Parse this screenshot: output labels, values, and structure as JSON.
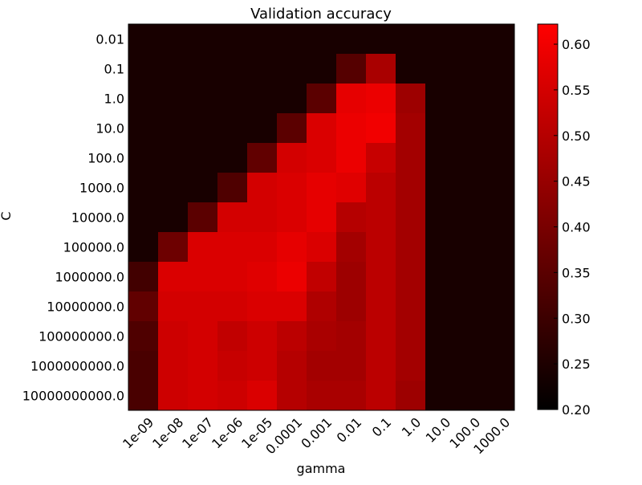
{
  "chart_data": {
    "type": "heatmap",
    "title": "Validation accuracy",
    "xlabel": "gamma",
    "ylabel": "C",
    "x_categories": [
      "1e-09",
      "1e-08",
      "1e-07",
      "1e-06",
      "1e-05",
      "0.0001",
      "0.001",
      "0.01",
      "0.1",
      "1.0",
      "10.0",
      "100.0",
      "1000.0"
    ],
    "y_categories": [
      "0.01",
      "0.1",
      "1.0",
      "10.0",
      "100.0",
      "1000.0",
      "10000.0",
      "100000.0",
      "1000000.0",
      "10000000.0",
      "100000000.0",
      "1000000000.0",
      "10000000000.0"
    ],
    "values": [
      [
        0.24,
        0.24,
        0.24,
        0.24,
        0.24,
        0.24,
        0.24,
        0.24,
        0.24,
        0.24,
        0.24,
        0.24,
        0.24
      ],
      [
        0.24,
        0.24,
        0.24,
        0.24,
        0.24,
        0.24,
        0.24,
        0.34,
        0.48,
        0.24,
        0.24,
        0.24,
        0.24
      ],
      [
        0.24,
        0.24,
        0.24,
        0.24,
        0.24,
        0.24,
        0.35,
        0.58,
        0.59,
        0.46,
        0.24,
        0.24,
        0.24
      ],
      [
        0.24,
        0.24,
        0.24,
        0.24,
        0.24,
        0.35,
        0.56,
        0.59,
        0.6,
        0.47,
        0.24,
        0.24,
        0.24
      ],
      [
        0.24,
        0.24,
        0.24,
        0.24,
        0.36,
        0.55,
        0.56,
        0.59,
        0.53,
        0.47,
        0.24,
        0.24,
        0.24
      ],
      [
        0.24,
        0.24,
        0.24,
        0.33,
        0.55,
        0.56,
        0.58,
        0.57,
        0.51,
        0.47,
        0.24,
        0.24,
        0.24
      ],
      [
        0.24,
        0.24,
        0.35,
        0.55,
        0.55,
        0.56,
        0.58,
        0.5,
        0.51,
        0.47,
        0.24,
        0.24,
        0.24
      ],
      [
        0.24,
        0.38,
        0.56,
        0.56,
        0.56,
        0.58,
        0.56,
        0.47,
        0.51,
        0.47,
        0.24,
        0.24,
        0.24
      ],
      [
        0.31,
        0.56,
        0.56,
        0.56,
        0.57,
        0.59,
        0.52,
        0.46,
        0.51,
        0.47,
        0.24,
        0.24,
        0.24
      ],
      [
        0.36,
        0.55,
        0.55,
        0.55,
        0.56,
        0.56,
        0.49,
        0.46,
        0.51,
        0.47,
        0.24,
        0.24,
        0.24
      ],
      [
        0.33,
        0.54,
        0.55,
        0.52,
        0.54,
        0.51,
        0.48,
        0.47,
        0.51,
        0.47,
        0.24,
        0.24,
        0.24
      ],
      [
        0.32,
        0.54,
        0.55,
        0.53,
        0.54,
        0.5,
        0.47,
        0.47,
        0.51,
        0.47,
        0.24,
        0.24,
        0.24
      ],
      [
        0.32,
        0.54,
        0.55,
        0.54,
        0.56,
        0.5,
        0.48,
        0.48,
        0.51,
        0.46,
        0.24,
        0.24,
        0.24
      ]
    ],
    "colorbar": {
      "vmin": 0.2,
      "vmax": 0.622,
      "ticks": [
        "0.20",
        "0.25",
        "0.30",
        "0.35",
        "0.40",
        "0.45",
        "0.50",
        "0.55",
        "0.60"
      ],
      "colormap": "black-to-red"
    },
    "grid": false,
    "legend": "colorbar-right"
  },
  "colors": {
    "low": "#000000",
    "high": "#ff0000"
  }
}
